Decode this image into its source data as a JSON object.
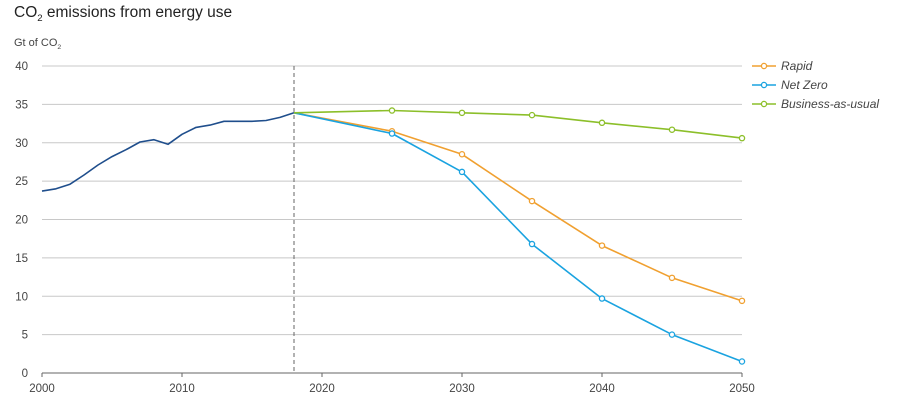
{
  "chart_data": {
    "type": "line",
    "title": {
      "main": "CO",
      "sub": "2",
      "rest": " emissions from energy use"
    },
    "ylabel": {
      "main": "Gt of CO",
      "sub": "2"
    },
    "xlabel": "",
    "xlim": [
      2000,
      2050
    ],
    "ylim": [
      0,
      40
    ],
    "x_ticks": [
      "2000",
      "2010",
      "2020",
      "2030",
      "2040",
      "2050"
    ],
    "y_ticks": [
      "0",
      "5",
      "10",
      "15",
      "20",
      "25",
      "30",
      "35",
      "40"
    ],
    "grid": "horizontal",
    "legend_position": "top-right",
    "reference_line_x": 2018,
    "series": [
      {
        "name": "",
        "color": "#1f4e8c",
        "markers": false,
        "x": [
          2000,
          2001,
          2002,
          2003,
          2004,
          2005,
          2006,
          2007,
          2008,
          2009,
          2010,
          2011,
          2012,
          2013,
          2014,
          2015,
          2016,
          2017,
          2018
        ],
        "y": [
          23.7,
          24.0,
          24.6,
          25.8,
          27.1,
          28.2,
          29.1,
          30.1,
          30.4,
          29.8,
          31.1,
          32.0,
          32.3,
          32.8,
          32.8,
          32.8,
          32.9,
          33.3,
          33.9
        ]
      },
      {
        "name": "Rapid",
        "color": "#f0a030",
        "markers": true,
        "x": [
          2018,
          2025,
          2030,
          2035,
          2040,
          2045,
          2050
        ],
        "y": [
          33.9,
          31.5,
          28.5,
          22.4,
          16.6,
          12.4,
          9.4
        ]
      },
      {
        "name": "Net Zero",
        "color": "#1aa3e0",
        "markers": true,
        "x": [
          2018,
          2025,
          2030,
          2035,
          2040,
          2045,
          2050
        ],
        "y": [
          33.9,
          31.2,
          26.2,
          16.8,
          9.7,
          5.0,
          1.5
        ]
      },
      {
        "name": "Business-as-usual",
        "color": "#8cbf2a",
        "markers": true,
        "x": [
          2018,
          2025,
          2030,
          2035,
          2040,
          2045,
          2050
        ],
        "y": [
          33.9,
          34.2,
          33.9,
          33.6,
          32.6,
          31.7,
          30.6
        ]
      }
    ]
  }
}
